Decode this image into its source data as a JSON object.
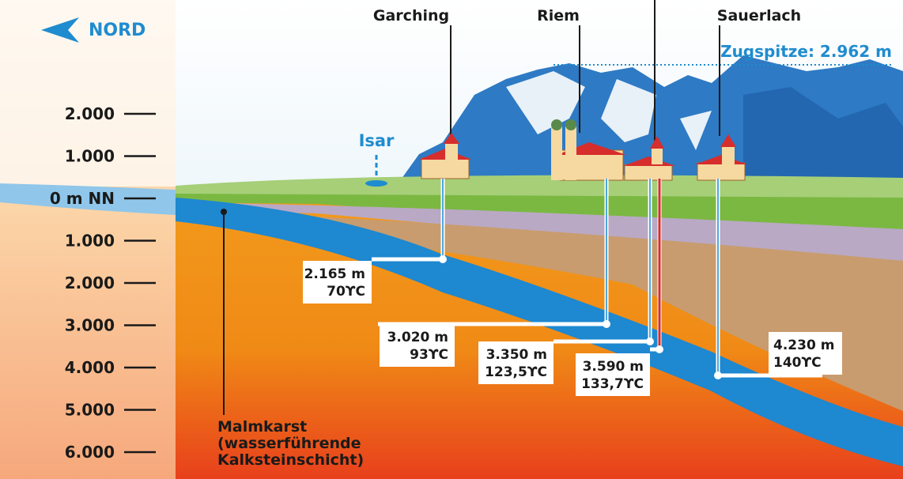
{
  "compass": {
    "label": "NORD"
  },
  "depth_scale": {
    "labels": [
      "2.000",
      "1.000",
      "0 m NN",
      "1.000",
      "2.000",
      "3.000",
      "4.000",
      "5.000",
      "6.000"
    ]
  },
  "locations": [
    {
      "name": "Garching"
    },
    {
      "name": "Riem"
    },
    {
      "name": "Sauerlach"
    }
  ],
  "annotations": {
    "zugspitze": "Zugspitze: 2.962 m",
    "river": "Isar",
    "layer": [
      "Malmkarst",
      "(wasserführende",
      "Kalksteinschicht)"
    ]
  },
  "wells": [
    {
      "depth": "2.165 m",
      "temperature": "70ϒC"
    },
    {
      "depth": "3.020 m",
      "temperature": "93ϒC"
    },
    {
      "depth": "3.350 m",
      "temperature": "123,5ϒC"
    },
    {
      "depth": "3.590 m",
      "temperature": "133,7ϒC"
    },
    {
      "depth": "4.230 m",
      "temperature": "140ϒC"
    }
  ]
}
